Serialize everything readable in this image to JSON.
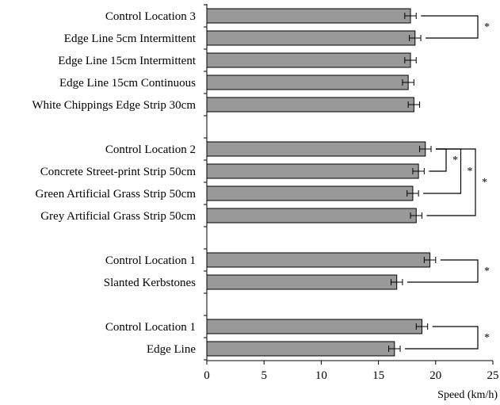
{
  "chart_data": {
    "type": "bar",
    "orientation": "horizontal",
    "title": "",
    "xlabel": "Speed (km/h)",
    "ylabel": "",
    "xlim": [
      0,
      25
    ],
    "xticks": [
      "0",
      "5",
      "10",
      "15",
      "20",
      "25"
    ],
    "bar_color": "#999999",
    "grid": false,
    "legend": "none",
    "significance_marker": "*",
    "groups": [
      {
        "bars": [
          {
            "label": "Control Location 3",
            "value": 17.8,
            "error": 0.5
          },
          {
            "label": "Edge Line 5cm Intermittent",
            "value": 18.2,
            "error": 0.5
          },
          {
            "label": "Edge Line 15cm Intermittent",
            "value": 17.8,
            "error": 0.5
          },
          {
            "label": "Edge Line 15cm Continuous",
            "value": 17.6,
            "error": 0.5
          },
          {
            "label": "White Chippings Edge Strip 30cm",
            "value": 18.1,
            "error": 0.5
          }
        ],
        "comparisons": [
          {
            "from": 0,
            "to": 1
          }
        ]
      },
      {
        "bars": [
          {
            "label": "Control Location 2",
            "value": 19.1,
            "error": 0.5
          },
          {
            "label": "Concrete Street-print Strip 50cm",
            "value": 18.5,
            "error": 0.5
          },
          {
            "label": "Green Artificial Grass Strip 50cm",
            "value": 18.0,
            "error": 0.5
          },
          {
            "label": "Grey Artificial Grass Strip 50cm",
            "value": 18.3,
            "error": 0.5
          }
        ],
        "comparisons": [
          {
            "from": 0,
            "to": 1
          },
          {
            "from": 0,
            "to": 2
          },
          {
            "from": 0,
            "to": 3
          }
        ]
      },
      {
        "bars": [
          {
            "label": "Control Location 1",
            "value": 19.5,
            "error": 0.5
          },
          {
            "label": "Slanted Kerbstones",
            "value": 16.6,
            "error": 0.5
          }
        ],
        "comparisons": [
          {
            "from": 0,
            "to": 1
          }
        ]
      },
      {
        "bars": [
          {
            "label": "Control Location 1",
            "value": 18.8,
            "error": 0.5
          },
          {
            "label": "Edge Line",
            "value": 16.4,
            "error": 0.5
          }
        ],
        "comparisons": [
          {
            "from": 0,
            "to": 1
          }
        ]
      }
    ]
  }
}
